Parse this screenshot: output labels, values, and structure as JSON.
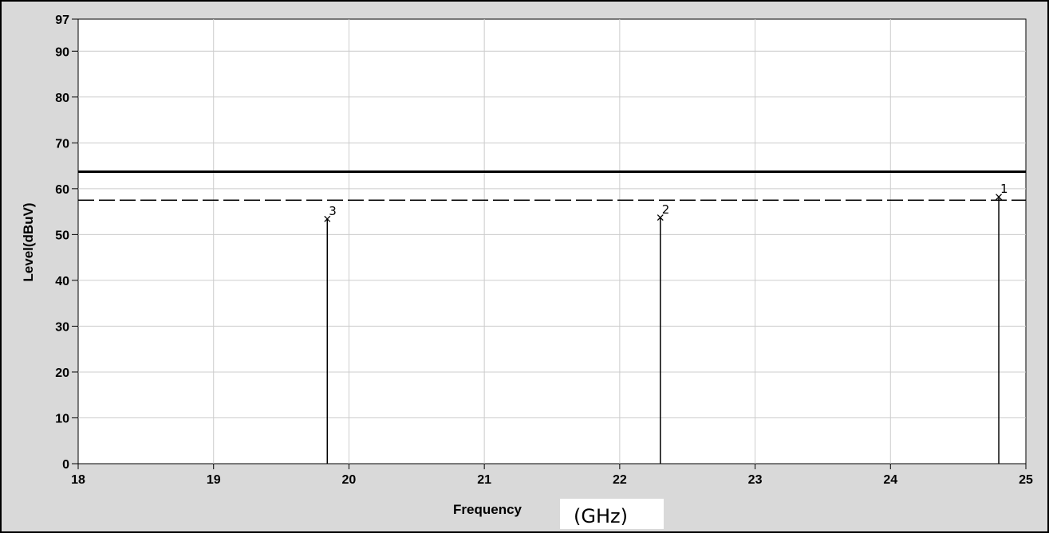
{
  "chart_data": {
    "type": "line",
    "title": "",
    "xlabel": "Frequency",
    "xlabel_unit": "(GHz)",
    "ylabel": "Level(dBuV)",
    "xlim": [
      18,
      25
    ],
    "ylim": [
      0,
      97
    ],
    "x_ticks": [
      "18",
      "19",
      "20",
      "21",
      "22",
      "23",
      "24",
      "25"
    ],
    "y_ticks": [
      "0",
      "10",
      "20",
      "30",
      "40",
      "50",
      "60",
      "70",
      "80",
      "90",
      "97"
    ],
    "grid": true,
    "limit_lines": [
      {
        "style": "solid",
        "y": 63.7
      },
      {
        "style": "dashed",
        "y": 57.5
      }
    ],
    "markers": [
      {
        "label": "1",
        "x": 24.8,
        "y": 58.2
      },
      {
        "label": "2",
        "x": 22.3,
        "y": 53.7
      },
      {
        "label": "3",
        "x": 19.84,
        "y": 53.4
      }
    ],
    "colors": {
      "background": "#d9d9d9",
      "plot": "#ffffff",
      "grid": "#cccccc",
      "line": "#000000"
    }
  }
}
